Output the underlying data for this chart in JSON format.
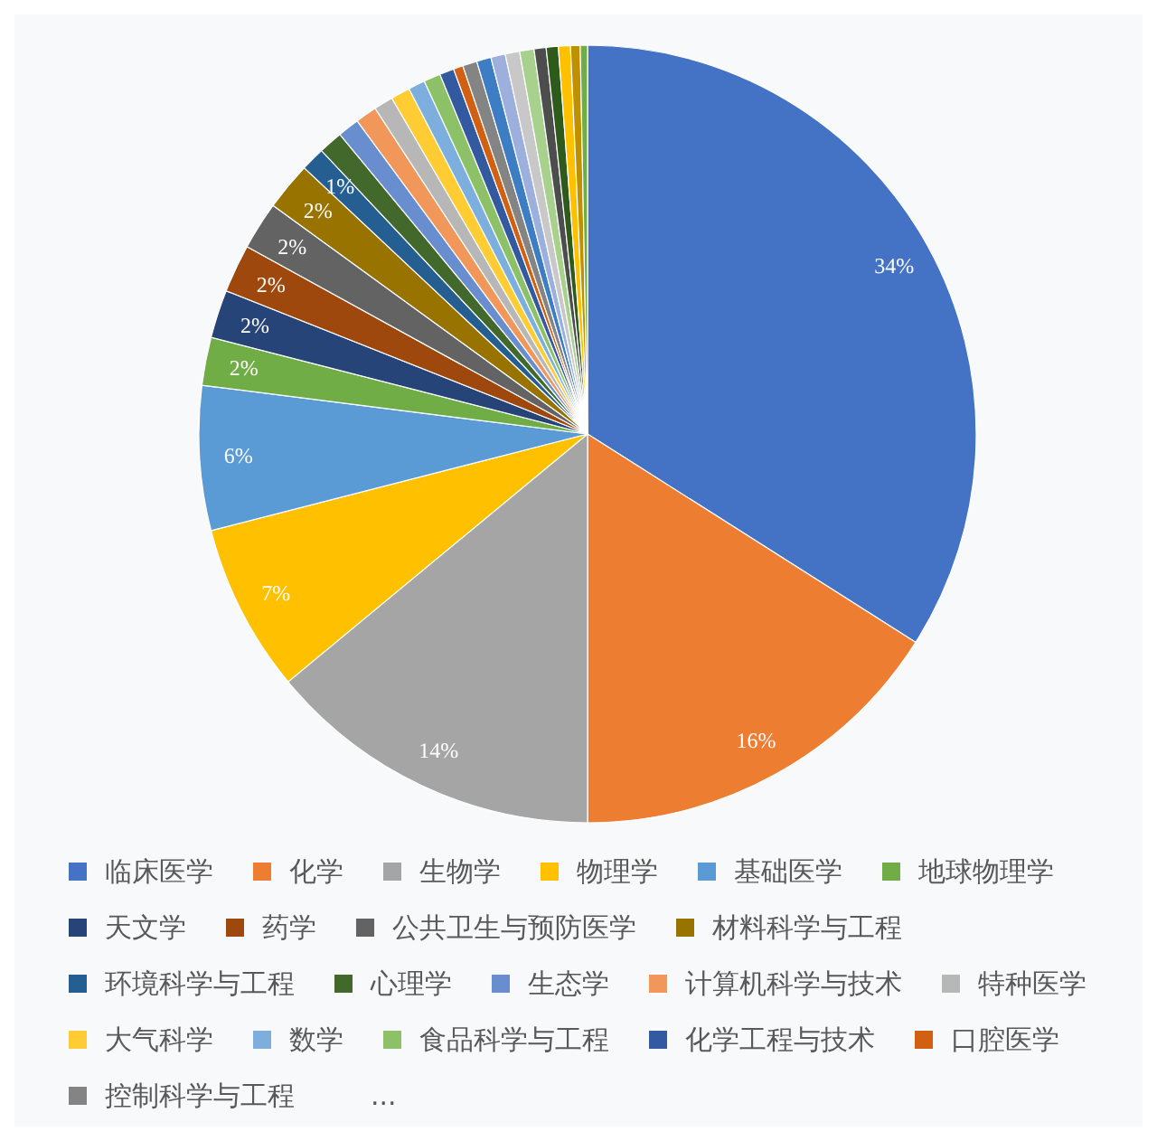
{
  "chart_data": {
    "type": "pie",
    "categories": [
      "临床医学",
      "化学",
      "生物学",
      "物理学",
      "基础医学",
      "地球物理学",
      "天文学",
      "药学",
      "公共卫生与预防医学",
      "材料科学与工程",
      "环境科学与工程",
      "心理学",
      "生态学",
      "计算机科学与技术",
      "特种医学",
      "大气科学",
      "数学",
      "食品科学与工程",
      "化学工程与技术",
      "口腔医学",
      "控制科学与工程",
      null,
      null,
      null,
      null,
      null,
      null,
      null,
      null,
      null
    ],
    "values": [
      34,
      16,
      14,
      7,
      6,
      2,
      2,
      2,
      2,
      2,
      1,
      1.0,
      0.9,
      0.9,
      0.8,
      0.8,
      0.7,
      0.7,
      0.6,
      0.4,
      0.6,
      0.6,
      0.6,
      0.6,
      0.6,
      0.5,
      0.5,
      0.5,
      0.4,
      0.3
    ],
    "value_labels": [
      "34%",
      "16%",
      "14%",
      "7%",
      "6%",
      "2%",
      "2%",
      "2%",
      "2%",
      "2%",
      "1%",
      null,
      null,
      null,
      null,
      null,
      null,
      null,
      null,
      null,
      null,
      null,
      null,
      null,
      null,
      null,
      null,
      null,
      null,
      null
    ],
    "colors": [
      "#4472c4",
      "#ed7d31",
      "#a5a5a5",
      "#ffc000",
      "#5b9bd5",
      "#70ad47",
      "#264478",
      "#9e480e",
      "#636363",
      "#997300",
      "#255e91",
      "#43682b",
      "#698ed0",
      "#f1975a",
      "#b7b7b7",
      "#ffcd33",
      "#7cafdd",
      "#8cc168",
      "#335aa1",
      "#d26012",
      "#848484",
      "#3c7dc4",
      "#9dafdc",
      "#c8c8c8",
      "#a9d18e",
      "#4d4d4d",
      "#2e5a1c",
      "#ffc000",
      "#bf9000",
      "#70ad47"
    ],
    "legend": "bottom",
    "annotations": [
      "..."
    ]
  }
}
